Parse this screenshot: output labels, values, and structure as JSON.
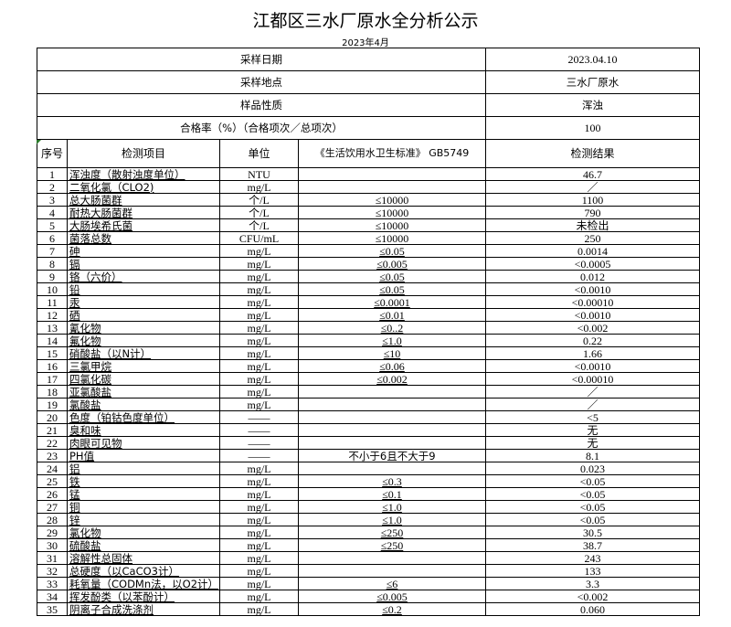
{
  "title": "江都区三水厂原水全分析公示",
  "subtitle": "2023年4月",
  "meta": [
    {
      "label": "采样日期",
      "value": "2023.04.10"
    },
    {
      "label": "采样地点",
      "value": "三水厂原水"
    },
    {
      "label": "样品性质",
      "value": "浑浊"
    },
    {
      "label": "合格率（%）（合格项次／总项次）",
      "value": "100"
    }
  ],
  "headers": {
    "no": "序号",
    "item": "检测项目",
    "unit": "单位",
    "standard": "《生活饮用水卫生标准》 GB5749",
    "result": "检测结果"
  },
  "rows": [
    [
      "1",
      "浑浊度（散射浊度单位）",
      "NTU",
      "",
      "46.7"
    ],
    [
      "2",
      "二氧化氯（CLO2)",
      "mg/L",
      "",
      "／"
    ],
    [
      "3",
      "总大肠菌群",
      "个/L",
      "≤10000",
      "1100"
    ],
    [
      "4",
      "耐热大肠菌群",
      "个/L",
      "≤10000",
      "790"
    ],
    [
      "5",
      "大肠埃希氏菌",
      "个/L",
      "≤10000",
      "未检出"
    ],
    [
      "6",
      "菌落总数",
      "CFU/mL",
      "≤10000",
      "250"
    ],
    [
      "7",
      "砷",
      "mg/L",
      "≤0.05",
      "0.0014"
    ],
    [
      "8",
      "镉",
      "mg/L",
      "≤0.005",
      "<0.0005"
    ],
    [
      "9",
      "铬（六价）",
      "mg/L",
      "≤0.05",
      "0.012"
    ],
    [
      "10",
      "铅",
      "mg/L",
      "≤0.05",
      "<0.0010"
    ],
    [
      "11",
      "汞",
      "mg/L",
      "≤0.0001",
      "<0.00010"
    ],
    [
      "12",
      "硒",
      "mg/L",
      "≤0.01",
      "<0.0010"
    ],
    [
      "13",
      "氰化物",
      "mg/L",
      "≤0..2",
      "<0.002"
    ],
    [
      "14",
      "氟化物",
      "mg/L",
      "≤1.0",
      "0.22"
    ],
    [
      "15",
      "硝酸盐（以N计）",
      "mg/L",
      "≤10",
      "1.66"
    ],
    [
      "16",
      "三氯甲烷",
      "mg/L",
      "≤0.06",
      "<0.0010"
    ],
    [
      "17",
      "四氯化碳",
      "mg/L",
      "≤0.002",
      "<0.00010"
    ],
    [
      "18",
      "亚氯酸盐",
      "mg/L",
      "",
      "／"
    ],
    [
      "19",
      "氯酸盐",
      "mg/L",
      "",
      "／"
    ],
    [
      "20",
      "色度（铂钴色度单位）",
      "——",
      "",
      "<5"
    ],
    [
      "21",
      "臭和味",
      "——",
      "",
      "无"
    ],
    [
      "22",
      "肉眼可见物",
      "——",
      "",
      "无"
    ],
    [
      "23",
      "PH值",
      "——",
      "不小于6且不大于9",
      "8.1"
    ],
    [
      "24",
      "铝",
      "mg/L",
      "",
      "0.023"
    ],
    [
      "25",
      "铁",
      "mg/L",
      "≤0.3",
      "<0.05"
    ],
    [
      "26",
      "锰",
      "mg/L",
      "≤0.1",
      "<0.05"
    ],
    [
      "27",
      "铜",
      "mg/L",
      "≤1.0",
      "<0.05"
    ],
    [
      "28",
      "锌",
      "mg/L",
      "≤1.0",
      "<0.05"
    ],
    [
      "29",
      "氯化物",
      "mg/L",
      "≤250",
      "30.5"
    ],
    [
      "30",
      "硫酸盐",
      "mg/L",
      "≤250",
      "38.7"
    ],
    [
      "31",
      "溶解性总固体",
      "mg/L",
      "",
      "243"
    ],
    [
      "32",
      "总硬度（以CaCO3计）",
      "mg/L",
      "",
      "133"
    ],
    [
      "33",
      "耗氧量（CODMn法，以O2计）",
      "mg/L",
      "≤6",
      "3.3"
    ],
    [
      "34",
      "挥发酚类（以苯酚计）",
      "mg/L",
      "≤0.005",
      "<0.002"
    ],
    [
      "35",
      "阴离子合成洗涤剂",
      "mg/L",
      "≤0.2",
      "0.060"
    ]
  ]
}
